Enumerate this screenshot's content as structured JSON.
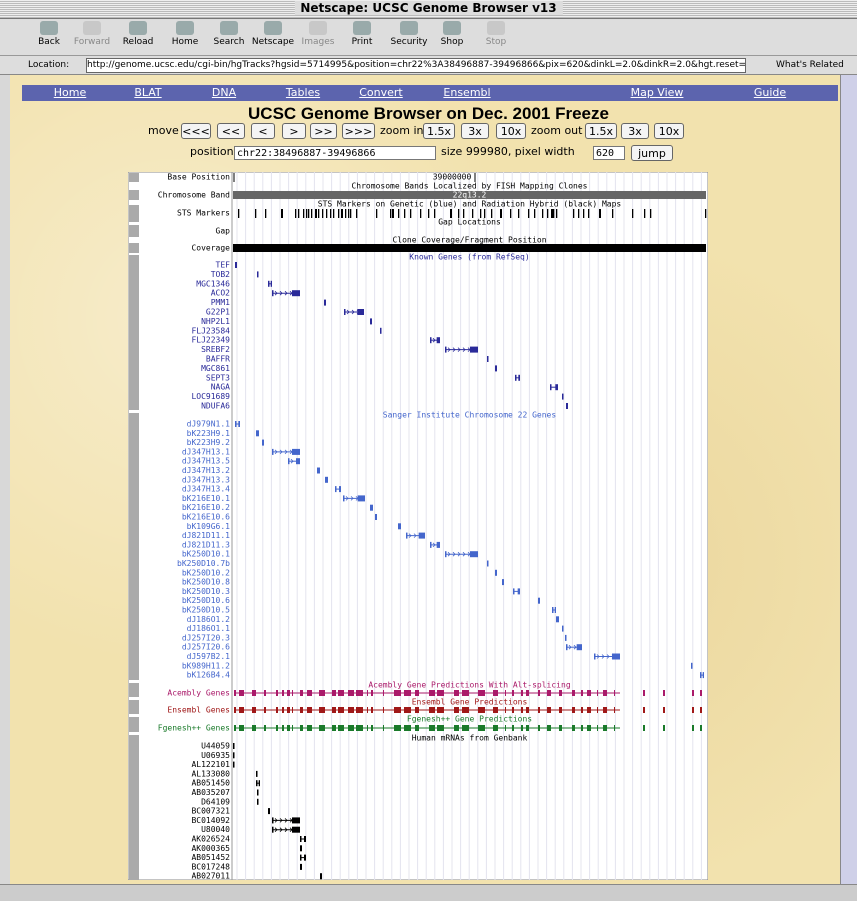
{
  "window": {
    "title": "Netscape: UCSC Genome Browser v13"
  },
  "toolbar": {
    "buttons": [
      "Back",
      "Forward",
      "Reload",
      "Home",
      "Search",
      "Netscape",
      "Images",
      "Print",
      "Security",
      "Shop",
      "Stop"
    ]
  },
  "location": {
    "label": "Location:",
    "url": "http://genome.ucsc.edu/cgi-bin/hgTracks?hgsid=5714995&position=chr22%3A38496887-39496866&pix=620&dinkL=2.0&dinkR=2.0&hgt.reset=reset",
    "related": "What's Related"
  },
  "nav": [
    "Home",
    "BLAT",
    "DNA",
    "Tables",
    "Convert",
    "Ensembl",
    "Map View",
    "Guide"
  ],
  "header": {
    "title": "UCSC Genome Browser on Dec. 2001 Freeze"
  },
  "controls": {
    "move_label": "move",
    "move_buttons": [
      "<<<",
      "<<",
      "<",
      ">",
      ">>",
      ">>>"
    ],
    "zoom_in_label": "zoom in",
    "zoom_in_buttons": [
      "1.5x",
      "3x",
      "10x"
    ],
    "zoom_out_label": "zoom out",
    "zoom_out_buttons": [
      "1.5x",
      "3x",
      "10x"
    ],
    "position_label": "position",
    "position_value": "chr22:38496887-39496866",
    "size_label": "size 999980, pixel width",
    "pixel_width": "620",
    "jump": "jump"
  },
  "tracks": {
    "base_position": {
      "label": "Base Position",
      "value": "39000000"
    },
    "chromosome_band": {
      "label": "Chromosome Band",
      "title": "Chromosome Bands Localized by FISH Mapping Clones",
      "band": "22q13.2"
    },
    "sts": {
      "label": "STS Markers",
      "title": "STS Markers on Genetic (blue) and Radiation Hybrid (black) Maps"
    },
    "gap": {
      "label": "Gap",
      "title": "Gap Locations"
    },
    "coverage": {
      "label": "Coverage",
      "title": "Clone Coverage/Fragment Position"
    },
    "known_genes": {
      "title": "Known Genes (from RefSeq)",
      "genes": [
        "TEF",
        "TOB2",
        "MGC1346",
        "ACO2",
        "PMM1",
        "G22P1",
        "NHP2L1",
        "FLJ23584",
        "FLJ22349",
        "SREBF2",
        "BAFFR",
        "MGC861",
        "SEPT3",
        "NAGA",
        "LOC91689",
        "NDUFA6"
      ]
    },
    "sanger": {
      "title": "Sanger Institute Chromosome 22 Genes",
      "genes": [
        "dJ979N1.1",
        "bK223H9.1",
        "bK223H9.2",
        "dJ347H13.1",
        "dJ347H13.5",
        "dJ347H13.2",
        "dJ347H13.3",
        "dJ347H13.4",
        "bK216E10.1",
        "bK216E10.2",
        "bK216E10.6",
        "bK109G6.1",
        "dJ821D11.1",
        "dJ821D11.3",
        "bK250D10.1",
        "bK250D10.7b",
        "bK250D10.2",
        "bK250D10.8",
        "bK250D10.3",
        "bK250D10.6",
        "bK250D10.5",
        "dJ186O1.2",
        "dJ186O1.1",
        "dJ257I20.3",
        "dJ257I20.6",
        "dJ597B2.1",
        "bK989H11.2",
        "bK126B4.4"
      ]
    },
    "acembly": {
      "label": "Acembly Genes",
      "title": "Acembly Gene Predictions With Alt-splicing"
    },
    "ensembl": {
      "label": "Ensembl Genes",
      "title": "Ensembl Gene Predictions"
    },
    "fgenesh": {
      "label": "Fgenesh++ Genes",
      "title": "Fgenesh++ Gene Predictions"
    },
    "mrna": {
      "title": "Human mRNAs from Genbank",
      "items": [
        "U44059",
        "U06935",
        "AL122101",
        "AL133080",
        "AB051450",
        "AB035207",
        "D64109",
        "BC007321",
        "BC014092",
        "U80040",
        "AK026524",
        "AK000365",
        "AB051452",
        "BC017248",
        "AB027011"
      ]
    }
  }
}
